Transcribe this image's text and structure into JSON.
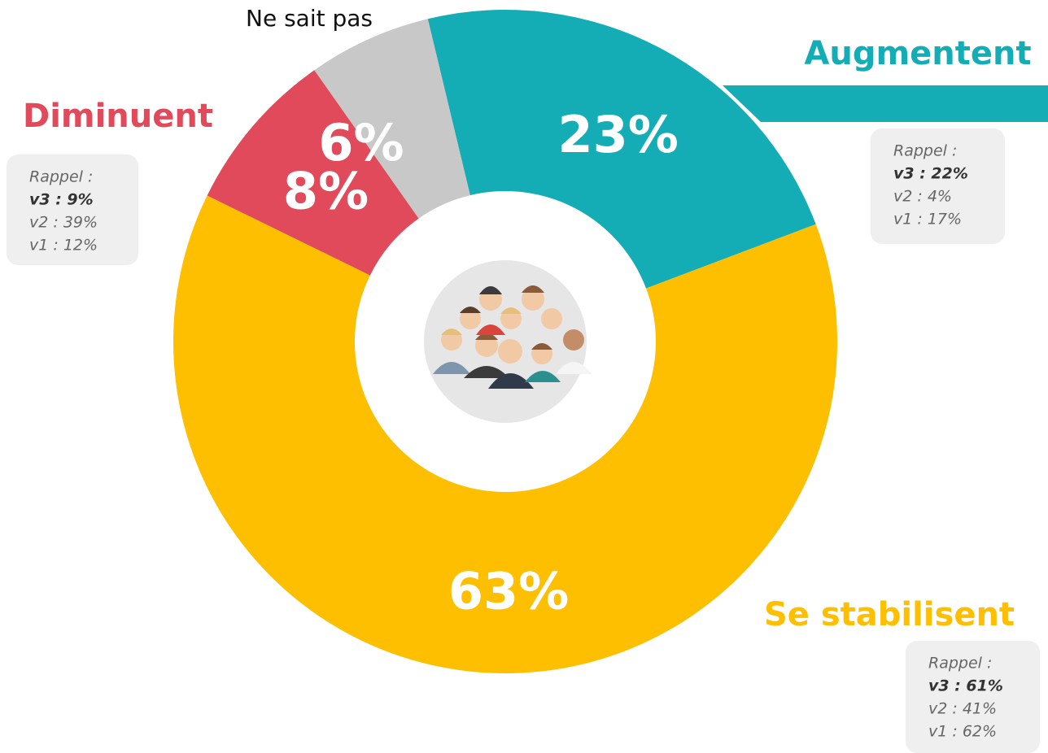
{
  "chart_data": {
    "type": "pie",
    "donut": true,
    "categories": [
      "Augmentent",
      "Se stabilisent",
      "Diminuent",
      "Ne sait pas"
    ],
    "values": [
      23,
      63,
      8,
      6
    ],
    "value_labels": [
      "23%",
      "63%",
      "8%",
      "6%"
    ],
    "colors": [
      "#14adb6",
      "#fdbf00",
      "#e04a5a",
      "#c8c8c8"
    ],
    "annotations": [
      {
        "title": "Rappel :",
        "lines": [
          "v3 : 22%",
          "v2 : 4%",
          "v1 : 17%"
        ]
      },
      {
        "title": "Rappel :",
        "lines": [
          "v3 : 61%",
          "v2 : 41%",
          "v1 : 62%"
        ]
      },
      {
        "title": "Rappel :",
        "lines": [
          "v3 : 9%",
          "v2 : 39%",
          "v1 : 12%"
        ]
      }
    ]
  }
}
